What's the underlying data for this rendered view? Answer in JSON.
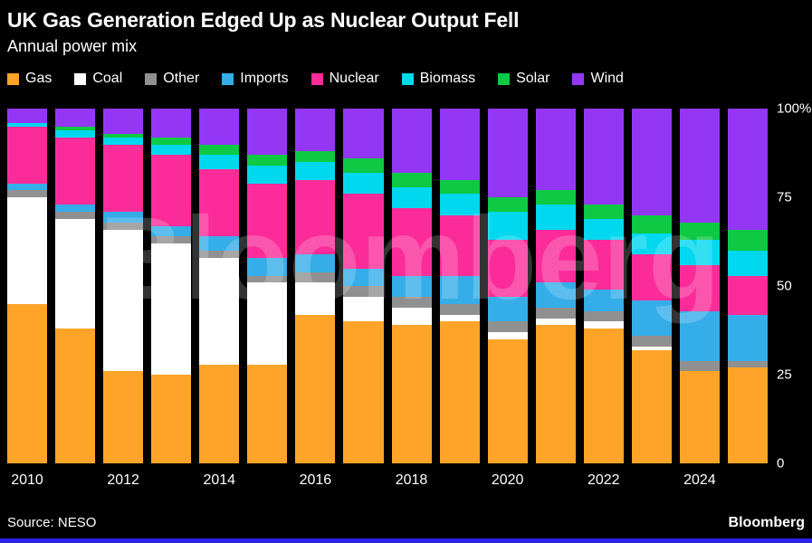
{
  "chart_data": {
    "type": "bar",
    "stacked": true,
    "normalized": "percent",
    "title": "UK Gas Generation Edged Up as Nuclear Output Fell",
    "subtitle": "Annual power mix",
    "categories": [
      2010,
      2011,
      2012,
      2013,
      2014,
      2015,
      2016,
      2017,
      2018,
      2019,
      2020,
      2021,
      2022,
      2023,
      2024,
      2025
    ],
    "series": [
      {
        "name": "Gas",
        "color": "#FFA428",
        "values": [
          45,
          38,
          26,
          25,
          28,
          28,
          42,
          40,
          39,
          40,
          35,
          39,
          38,
          32,
          26,
          27
        ]
      },
      {
        "name": "Coal",
        "color": "#FFFFFF",
        "values": [
          30,
          31,
          40,
          37,
          30,
          23,
          9,
          7,
          5,
          2,
          2,
          2,
          2,
          1,
          0,
          0
        ]
      },
      {
        "name": "Other",
        "color": "#909090",
        "values": [
          2,
          2,
          2,
          2,
          2,
          2,
          3,
          3,
          3,
          3,
          3,
          3,
          3,
          3,
          3,
          2
        ]
      },
      {
        "name": "Imports",
        "color": "#35ADE8",
        "values": [
          2,
          2,
          3,
          3,
          4,
          5,
          5,
          5,
          6,
          8,
          7,
          7,
          6,
          10,
          14,
          13
        ]
      },
      {
        "name": "Nuclear",
        "color": "#FB2C99",
        "values": [
          16,
          19,
          19,
          20,
          19,
          21,
          21,
          21,
          19,
          17,
          16,
          15,
          14,
          13,
          13,
          11
        ]
      },
      {
        "name": "Biomass",
        "color": "#00D8F0",
        "values": [
          1,
          2,
          2,
          3,
          4,
          5,
          5,
          6,
          6,
          6,
          8,
          7,
          6,
          6,
          7,
          7
        ]
      },
      {
        "name": "Solar",
        "color": "#0DC943",
        "values": [
          0,
          1,
          1,
          2,
          3,
          3,
          3,
          4,
          4,
          4,
          4,
          4,
          4,
          5,
          5,
          6
        ]
      },
      {
        "name": "Wind",
        "color": "#9437F5",
        "values": [
          4,
          5,
          7,
          8,
          10,
          13,
          12,
          14,
          18,
          20,
          25,
          23,
          27,
          30,
          32,
          34
        ]
      }
    ],
    "ylim": [
      0,
      100
    ],
    "y_ticks": [
      {
        "value": 100,
        "label": "100%"
      },
      {
        "value": 75,
        "label": "75"
      },
      {
        "value": 50,
        "label": "50"
      },
      {
        "value": 25,
        "label": "25"
      },
      {
        "value": 0,
        "label": "0"
      }
    ],
    "x_tick_years": [
      2010,
      2012,
      2014,
      2016,
      2018,
      2020,
      2022,
      2024
    ],
    "legend_position": "top",
    "grid": false
  },
  "watermark": "Bloomberg",
  "footer": {
    "source": "Source: NESO",
    "brand": "Bloomberg",
    "accent_color": "#2D23E9"
  }
}
